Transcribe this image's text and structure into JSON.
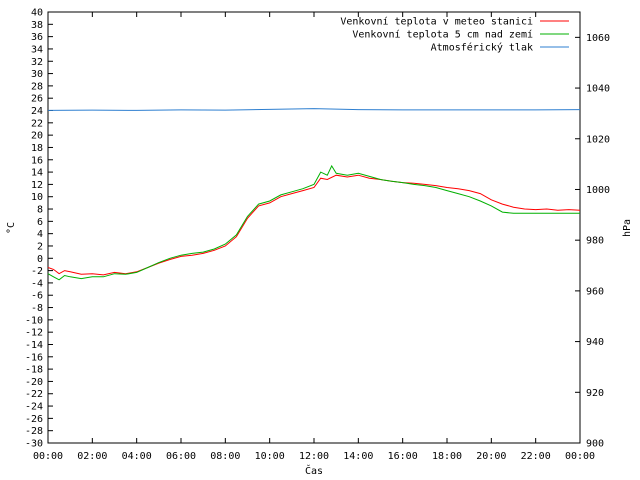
{
  "chart_data": {
    "type": "line",
    "title": "",
    "xlabel": "Čas",
    "ylabel": "°C",
    "y2label": "hPa",
    "grid": false,
    "legend_position": "top-right",
    "x_ticks": [
      "00:00",
      "02:00",
      "04:00",
      "06:00",
      "08:00",
      "10:00",
      "12:00",
      "14:00",
      "16:00",
      "18:00",
      "20:00",
      "22:00",
      "00:00"
    ],
    "xlim": [
      0,
      24
    ],
    "ylim": [
      -30,
      40
    ],
    "y_ticks": [
      -30,
      -28,
      -26,
      -24,
      -22,
      -20,
      -18,
      -16,
      -14,
      -12,
      -10,
      -8,
      -6,
      -4,
      -2,
      0,
      2,
      4,
      6,
      8,
      10,
      12,
      14,
      16,
      18,
      20,
      22,
      24,
      26,
      28,
      30,
      32,
      34,
      36,
      38,
      40
    ],
    "y2lim": [
      900,
      1070
    ],
    "y2_ticks": [
      900,
      920,
      940,
      960,
      980,
      1000,
      1020,
      1040,
      1060
    ],
    "series": [
      {
        "name": "Venkovní teplota v meteo stanici",
        "color": "#ff0000",
        "axis": "left",
        "x": [
          0,
          0.25,
          0.5,
          0.75,
          1,
          1.5,
          2,
          2.5,
          3,
          3.5,
          4,
          4.5,
          5,
          5.5,
          6,
          6.5,
          7,
          7.5,
          8,
          8.5,
          9,
          9.5,
          10,
          10.5,
          11,
          11.5,
          12,
          12.3,
          12.6,
          13,
          13.5,
          14,
          14.5,
          15,
          15.5,
          16,
          16.5,
          17,
          17.5,
          18,
          18.5,
          19,
          19.5,
          20,
          20.5,
          21,
          21.5,
          22,
          22.5,
          23,
          23.5,
          24
        ],
        "y": [
          -1.5,
          -1.8,
          -2.5,
          -2.0,
          -2.2,
          -2.6,
          -2.5,
          -2.7,
          -2.3,
          -2.5,
          -2.2,
          -1.5,
          -0.8,
          -0.2,
          0.3,
          0.5,
          0.8,
          1.3,
          2.0,
          3.5,
          6.5,
          8.5,
          9.0,
          10.0,
          10.5,
          11.0,
          11.5,
          13.0,
          12.8,
          13.5,
          13.2,
          13.5,
          13.0,
          12.8,
          12.5,
          12.3,
          12.2,
          12.0,
          11.8,
          11.5,
          11.3,
          11.0,
          10.5,
          9.5,
          8.8,
          8.3,
          8.0,
          7.9,
          8.0,
          7.8,
          7.9,
          7.8
        ]
      },
      {
        "name": "Venkovní teplota 5 cm nad zemí",
        "color": "#00b000",
        "axis": "left",
        "x": [
          0,
          0.25,
          0.5,
          0.75,
          1,
          1.5,
          2,
          2.5,
          3,
          3.5,
          4,
          4.5,
          5,
          5.5,
          6,
          6.5,
          7,
          7.5,
          8,
          8.5,
          9,
          9.5,
          10,
          10.5,
          11,
          11.5,
          12,
          12.3,
          12.6,
          12.8,
          13,
          13.5,
          14,
          14.5,
          15,
          15.5,
          16,
          16.5,
          17,
          17.5,
          18,
          18.5,
          19,
          19.5,
          20,
          20.5,
          21,
          21.5,
          22,
          22.5,
          23,
          23.5,
          24
        ],
        "y": [
          -2.5,
          -3.0,
          -3.5,
          -2.8,
          -3.0,
          -3.3,
          -3.0,
          -3.0,
          -2.5,
          -2.6,
          -2.3,
          -1.5,
          -0.7,
          0.0,
          0.5,
          0.8,
          1.0,
          1.5,
          2.3,
          3.8,
          6.8,
          8.8,
          9.3,
          10.3,
          10.8,
          11.3,
          12.0,
          14.0,
          13.5,
          15.0,
          13.8,
          13.5,
          13.8,
          13.3,
          12.8,
          12.5,
          12.3,
          12.0,
          11.8,
          11.5,
          11.0,
          10.5,
          10.0,
          9.3,
          8.5,
          7.5,
          7.3,
          7.3,
          7.3,
          7.3,
          7.3,
          7.3,
          7.3
        ]
      },
      {
        "name": "Atmosférický tlak",
        "color": "#2e7fd0",
        "axis": "right",
        "x": [
          0,
          2,
          4,
          6,
          8,
          10,
          12,
          14,
          16,
          18,
          20,
          22,
          24
        ],
        "y": [
          1031.2,
          1031.3,
          1031.2,
          1031.4,
          1031.3,
          1031.6,
          1031.9,
          1031.5,
          1031.4,
          1031.4,
          1031.4,
          1031.4,
          1031.5
        ]
      }
    ]
  }
}
